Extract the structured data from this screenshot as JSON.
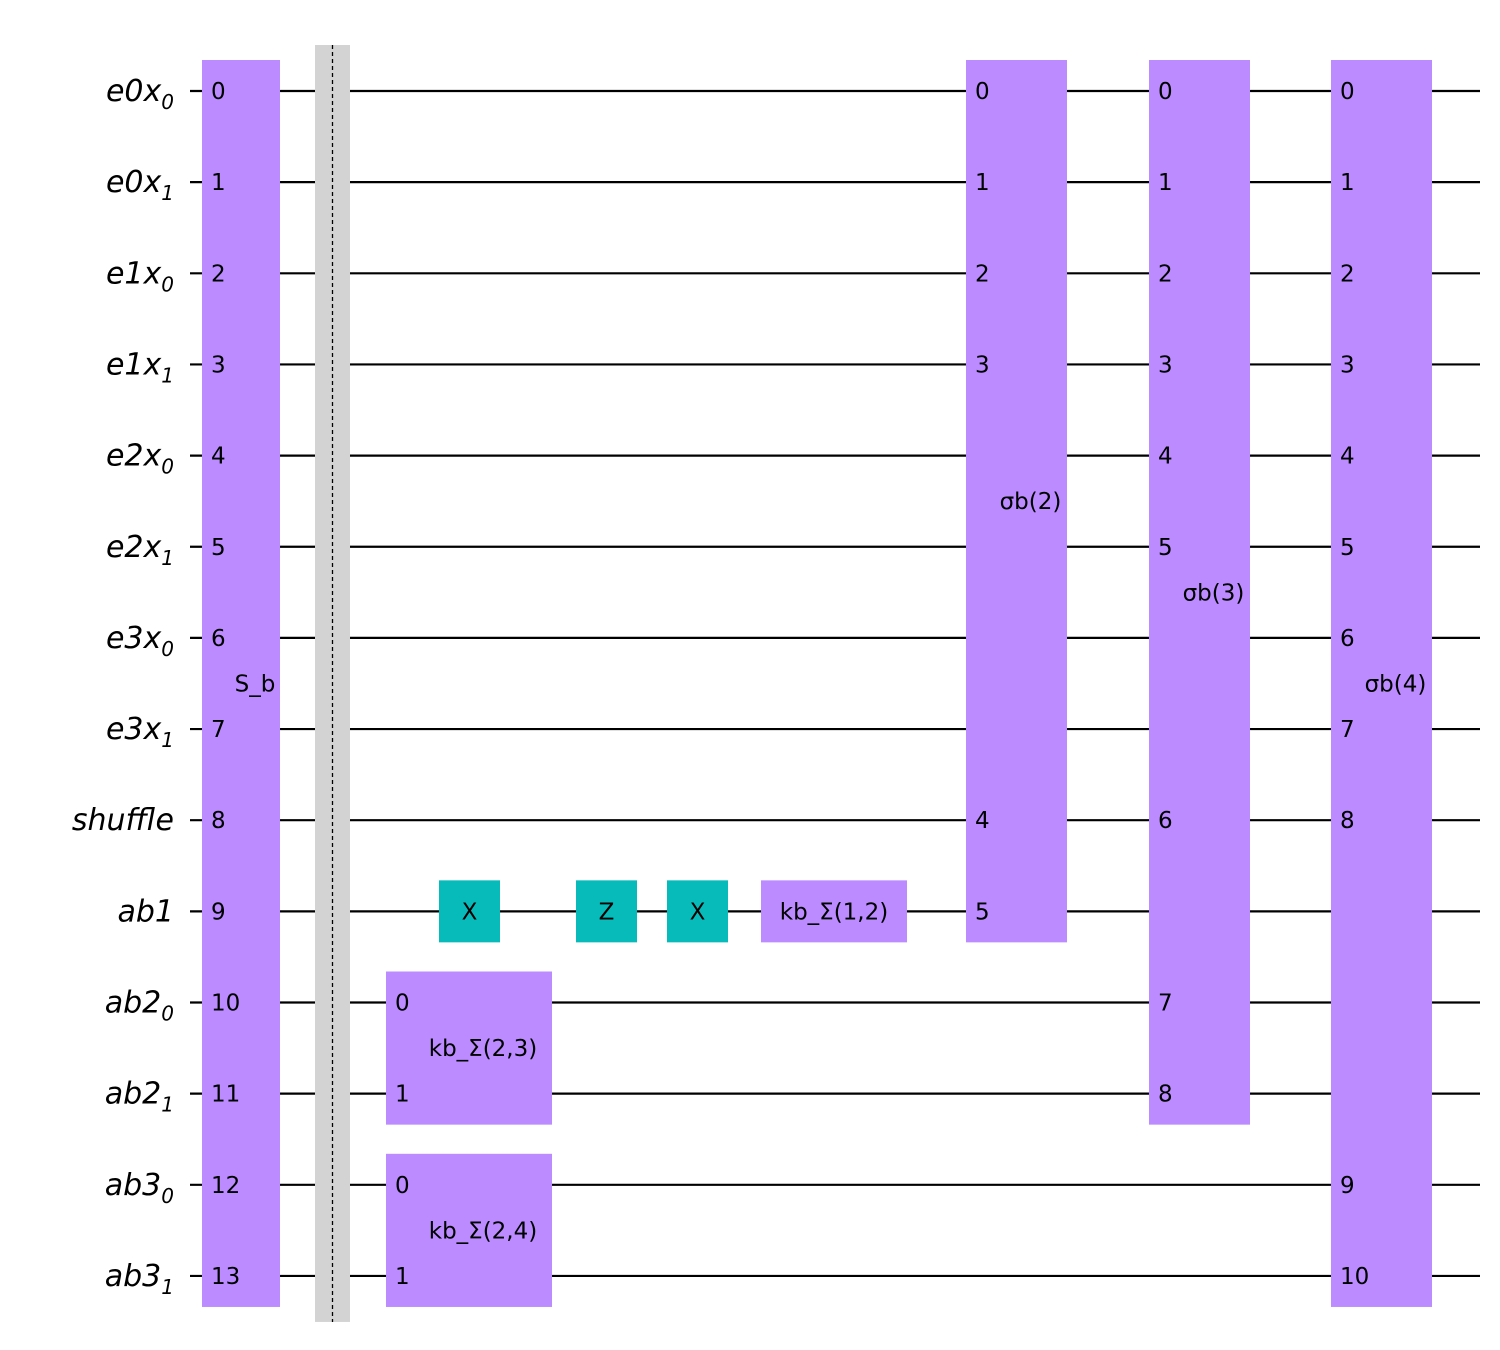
{
  "colors": {
    "gate_purple": "#bb8bff",
    "gate_teal": "#08bbbb",
    "barrier_fill": "#d3d3d3",
    "wire": "#000000"
  },
  "qubits": [
    {
      "name": "e0x",
      "sub": "0"
    },
    {
      "name": "e0x",
      "sub": "1"
    },
    {
      "name": "e1x",
      "sub": "0"
    },
    {
      "name": "e1x",
      "sub": "1"
    },
    {
      "name": "e2x",
      "sub": "0"
    },
    {
      "name": "e2x",
      "sub": "1"
    },
    {
      "name": "e3x",
      "sub": "0"
    },
    {
      "name": "e3x",
      "sub": "1"
    },
    {
      "name": "shuffle",
      "sub": ""
    },
    {
      "name": "ab1",
      "sub": ""
    },
    {
      "name": "ab2",
      "sub": "0"
    },
    {
      "name": "ab2",
      "sub": "1"
    },
    {
      "name": "ab3",
      "sub": "0"
    },
    {
      "name": "ab3",
      "sub": "1"
    }
  ],
  "gates": [
    {
      "id": "S_b",
      "label": "S_b",
      "color": "purple",
      "column": 0,
      "qubits": [
        0,
        1,
        2,
        3,
        4,
        5,
        6,
        7,
        8,
        9,
        10,
        11,
        12,
        13
      ],
      "ports": [
        "0",
        "1",
        "2",
        "3",
        "4",
        "5",
        "6",
        "7",
        "8",
        "9",
        "10",
        "11",
        "12",
        "13"
      ]
    },
    {
      "id": "kb_sigma_2_3",
      "label": "kb_Σ(2,3)",
      "color": "purple",
      "column": 2,
      "qubits": [
        10,
        11
      ],
      "ports": [
        "0",
        "1"
      ]
    },
    {
      "id": "kb_sigma_2_4",
      "label": "kb_Σ(2,4)",
      "color": "purple",
      "column": 2,
      "qubits": [
        12,
        13
      ],
      "ports": [
        "0",
        "1"
      ]
    },
    {
      "id": "x_gate_1",
      "label": "X",
      "color": "teal",
      "column": 3,
      "qubits": [
        9
      ],
      "ports": []
    },
    {
      "id": "z_gate",
      "label": "Z",
      "color": "teal",
      "column": 4,
      "qubits": [
        9
      ],
      "ports": []
    },
    {
      "id": "x_gate_2",
      "label": "X",
      "color": "teal",
      "column": 5,
      "qubits": [
        9
      ],
      "ports": []
    },
    {
      "id": "kb_sigma_1_2",
      "label": "kb_Σ(1,2)",
      "color": "purple",
      "column": 6,
      "qubits": [
        9
      ],
      "ports": []
    },
    {
      "id": "sigma_b_2",
      "label": "σb(2)",
      "color": "purple",
      "column": 7,
      "qubits": [
        0,
        1,
        2,
        3,
        8,
        9
      ],
      "ports": [
        "0",
        "1",
        "2",
        "3",
        "4",
        "5"
      ]
    },
    {
      "id": "sigma_b_3",
      "label": "σb(3)",
      "color": "purple",
      "column": 8,
      "qubits": [
        0,
        1,
        2,
        3,
        4,
        5,
        8,
        10,
        11
      ],
      "ports": [
        "0",
        "1",
        "2",
        "3",
        "4",
        "5",
        "6",
        "7",
        "8"
      ]
    },
    {
      "id": "sigma_b_4",
      "label": "σb(4)",
      "color": "purple",
      "column": 9,
      "qubits": [
        0,
        1,
        2,
        3,
        4,
        5,
        6,
        7,
        8,
        12,
        13
      ],
      "ports": [
        "0",
        "1",
        "2",
        "3",
        "4",
        "5",
        "6",
        "7",
        "8",
        "9",
        "10"
      ]
    }
  ],
  "barrier": {
    "column": 1,
    "qubits": [
      0,
      13
    ]
  }
}
